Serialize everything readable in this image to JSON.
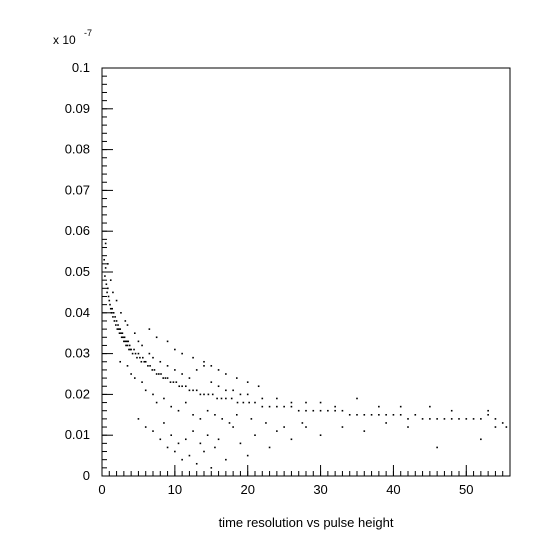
{
  "chart_data": {
    "type": "scatter",
    "title": "",
    "xlabel": "time resolution vs pulse height",
    "ylabel": "",
    "y_multiplier_base": "x 10",
    "y_multiplier_exponent": "-7",
    "xlim": [
      0,
      56
    ],
    "ylim": [
      0,
      0.1
    ],
    "x_major_ticks": [
      0,
      10,
      20,
      30,
      40,
      50
    ],
    "x_tick_labels": [
      "0",
      "10",
      "20",
      "30",
      "40",
      "50"
    ],
    "x_minor_step": 1,
    "y_major_ticks": [
      0,
      0.01,
      0.02,
      0.03,
      0.04,
      0.05,
      0.06,
      0.07,
      0.08,
      0.09,
      0.1
    ],
    "y_tick_labels": [
      "0",
      "0.01",
      "0.02",
      "0.03",
      "0.04",
      "0.05",
      "0.06",
      "0.07",
      "0.08",
      "0.09",
      "0.1"
    ],
    "y_minor_step": 0.002,
    "grid": false,
    "legend": "none",
    "marker_color": "#000000",
    "series": [
      {
        "points": [
          [
            0.3,
            0.053
          ],
          [
            0.4,
            0.049
          ],
          [
            0.5,
            0.051
          ],
          [
            0.6,
            0.047
          ],
          [
            0.7,
            0.045
          ],
          [
            0.8,
            0.046
          ],
          [
            0.9,
            0.044
          ],
          [
            1.0,
            0.043
          ],
          [
            1.1,
            0.042
          ],
          [
            1.2,
            0.041
          ],
          [
            1.3,
            0.04
          ],
          [
            1.4,
            0.041
          ],
          [
            1.5,
            0.039
          ],
          [
            1.6,
            0.04
          ],
          [
            1.7,
            0.038
          ],
          [
            1.8,
            0.039
          ],
          [
            1.9,
            0.037
          ],
          [
            2.0,
            0.038
          ],
          [
            2.1,
            0.036
          ],
          [
            2.2,
            0.037
          ],
          [
            2.3,
            0.036
          ],
          [
            2.4,
            0.035
          ],
          [
            2.5,
            0.036
          ],
          [
            2.6,
            0.035
          ],
          [
            2.7,
            0.034
          ],
          [
            2.8,
            0.035
          ],
          [
            2.9,
            0.034
          ],
          [
            3.0,
            0.033
          ],
          [
            3.1,
            0.034
          ],
          [
            3.2,
            0.033
          ],
          [
            3.3,
            0.032
          ],
          [
            3.4,
            0.033
          ],
          [
            3.5,
            0.032
          ],
          [
            3.6,
            0.033
          ],
          [
            3.7,
            0.031
          ],
          [
            3.8,
            0.032
          ],
          [
            3.9,
            0.031
          ],
          [
            4.0,
            0.031
          ],
          [
            4.2,
            0.03
          ],
          [
            4.4,
            0.031
          ],
          [
            4.6,
            0.03
          ],
          [
            4.8,
            0.029
          ],
          [
            5.0,
            0.03
          ],
          [
            5.2,
            0.029
          ],
          [
            5.4,
            0.028
          ],
          [
            5.6,
            0.029
          ],
          [
            5.8,
            0.028
          ],
          [
            6.0,
            0.028
          ],
          [
            6.3,
            0.027
          ],
          [
            6.6,
            0.027
          ],
          [
            6.9,
            0.026
          ],
          [
            7.2,
            0.026
          ],
          [
            7.5,
            0.025
          ],
          [
            7.8,
            0.025
          ],
          [
            8.1,
            0.025
          ],
          [
            8.4,
            0.024
          ],
          [
            8.7,
            0.024
          ],
          [
            9.0,
            0.024
          ],
          [
            9.4,
            0.023
          ],
          [
            9.8,
            0.023
          ],
          [
            10.2,
            0.023
          ],
          [
            10.6,
            0.022
          ],
          [
            11.0,
            0.022
          ],
          [
            11.5,
            0.022
          ],
          [
            12.0,
            0.021
          ],
          [
            12.5,
            0.021
          ],
          [
            13.0,
            0.021
          ],
          [
            13.5,
            0.02
          ],
          [
            14.0,
            0.02
          ],
          [
            14.6,
            0.02
          ],
          [
            15.2,
            0.02
          ],
          [
            15.8,
            0.019
          ],
          [
            16.4,
            0.019
          ],
          [
            17.0,
            0.019
          ],
          [
            17.8,
            0.019
          ],
          [
            18.6,
            0.018
          ],
          [
            19.4,
            0.018
          ],
          [
            20.2,
            0.018
          ],
          [
            21.0,
            0.018
          ],
          [
            22.0,
            0.017
          ],
          [
            23.0,
            0.017
          ],
          [
            24.0,
            0.017
          ],
          [
            25.0,
            0.017
          ],
          [
            26.0,
            0.017
          ],
          [
            27.0,
            0.016
          ],
          [
            28.0,
            0.016
          ],
          [
            29.0,
            0.016
          ],
          [
            30.0,
            0.016
          ],
          [
            31.0,
            0.016
          ],
          [
            32.0,
            0.016
          ],
          [
            33.0,
            0.016
          ],
          [
            34.0,
            0.015
          ],
          [
            35.0,
            0.015
          ],
          [
            36.0,
            0.015
          ],
          [
            37.0,
            0.015
          ],
          [
            38.0,
            0.015
          ],
          [
            39.0,
            0.015
          ],
          [
            40.0,
            0.015
          ],
          [
            41.0,
            0.015
          ],
          [
            42.0,
            0.014
          ],
          [
            43.0,
            0.015
          ],
          [
            44.0,
            0.014
          ],
          [
            45.0,
            0.014
          ],
          [
            46.0,
            0.014
          ],
          [
            47.0,
            0.014
          ],
          [
            48.0,
            0.014
          ],
          [
            49.0,
            0.014
          ],
          [
            50.0,
            0.014
          ],
          [
            51.0,
            0.014
          ],
          [
            52.0,
            0.014
          ],
          [
            53.0,
            0.015
          ],
          [
            54.0,
            0.014
          ],
          [
            55.0,
            0.013
          ],
          [
            55.5,
            0.012
          ],
          [
            0.5,
            0.057
          ],
          [
            0.8,
            0.052
          ],
          [
            1.2,
            0.048
          ],
          [
            1.5,
            0.045
          ],
          [
            2.0,
            0.043
          ],
          [
            2.6,
            0.04
          ],
          [
            3.2,
            0.038
          ],
          [
            3.5,
            0.037
          ],
          [
            4.5,
            0.035
          ],
          [
            5.0,
            0.033
          ],
          [
            5.5,
            0.032
          ],
          [
            6.5,
            0.03
          ],
          [
            7.0,
            0.029
          ],
          [
            8.0,
            0.028
          ],
          [
            9.0,
            0.027
          ],
          [
            10.0,
            0.026
          ],
          [
            11.0,
            0.025
          ],
          [
            12.0,
            0.024
          ],
          [
            13.0,
            0.026
          ],
          [
            14.0,
            0.027
          ],
          [
            15.0,
            0.023
          ],
          [
            16.0,
            0.022
          ],
          [
            17.0,
            0.021
          ],
          [
            18.0,
            0.021
          ],
          [
            19.0,
            0.02
          ],
          [
            20.0,
            0.02
          ],
          [
            22.0,
            0.019
          ],
          [
            24.0,
            0.019
          ],
          [
            26.0,
            0.018
          ],
          [
            28.0,
            0.018
          ],
          [
            30.0,
            0.018
          ],
          [
            32.0,
            0.017
          ],
          [
            35.0,
            0.019
          ],
          [
            38.0,
            0.017
          ],
          [
            41.0,
            0.017
          ],
          [
            45.0,
            0.017
          ],
          [
            48.0,
            0.016
          ],
          [
            53.0,
            0.016
          ],
          [
            2.5,
            0.028
          ],
          [
            3.5,
            0.027
          ],
          [
            4.0,
            0.025
          ],
          [
            4.5,
            0.024
          ],
          [
            5.5,
            0.023
          ],
          [
            6.0,
            0.021
          ],
          [
            7.0,
            0.02
          ],
          [
            7.5,
            0.018
          ],
          [
            8.5,
            0.019
          ],
          [
            9.5,
            0.017
          ],
          [
            10.5,
            0.016
          ],
          [
            11.5,
            0.018
          ],
          [
            12.5,
            0.015
          ],
          [
            13.5,
            0.014
          ],
          [
            14.5,
            0.016
          ],
          [
            15.5,
            0.015
          ],
          [
            16.5,
            0.014
          ],
          [
            17.5,
            0.013
          ],
          [
            18.5,
            0.015
          ],
          [
            20.5,
            0.014
          ],
          [
            22.5,
            0.013
          ],
          [
            25.0,
            0.012
          ],
          [
            27.5,
            0.013
          ],
          [
            5.0,
            0.014
          ],
          [
            6.0,
            0.012
          ],
          [
            7.0,
            0.011
          ],
          [
            8.0,
            0.009
          ],
          [
            8.5,
            0.013
          ],
          [
            9.0,
            0.007
          ],
          [
            9.5,
            0.01
          ],
          [
            10.0,
            0.006
          ],
          [
            10.5,
            0.008
          ],
          [
            11.0,
            0.004
          ],
          [
            11.5,
            0.009
          ],
          [
            12.0,
            0.005
          ],
          [
            12.5,
            0.011
          ],
          [
            13.0,
            0.003
          ],
          [
            13.5,
            0.008
          ],
          [
            14.0,
            0.006
          ],
          [
            14.5,
            0.01
          ],
          [
            15.0,
            0.002
          ],
          [
            15.5,
            0.007
          ],
          [
            16.0,
            0.009
          ],
          [
            17.0,
            0.004
          ],
          [
            18.0,
            0.012
          ],
          [
            19.0,
            0.008
          ],
          [
            20.0,
            0.005
          ],
          [
            21.0,
            0.01
          ],
          [
            23.0,
            0.007
          ],
          [
            24.0,
            0.011
          ],
          [
            26.0,
            0.009
          ],
          [
            28.0,
            0.012
          ],
          [
            30.0,
            0.01
          ],
          [
            33.0,
            0.012
          ],
          [
            36.0,
            0.011
          ],
          [
            39.0,
            0.013
          ],
          [
            42.0,
            0.012
          ],
          [
            46.0,
            0.007
          ],
          [
            52.0,
            0.009
          ],
          [
            54.0,
            0.012
          ],
          [
            6.5,
            0.036
          ],
          [
            7.5,
            0.034
          ],
          [
            9.0,
            0.033
          ],
          [
            10.0,
            0.031
          ],
          [
            11.0,
            0.03
          ],
          [
            12.5,
            0.029
          ],
          [
            14.0,
            0.028
          ],
          [
            15.0,
            0.027
          ],
          [
            16.0,
            0.026
          ],
          [
            17.0,
            0.025
          ],
          [
            18.5,
            0.024
          ],
          [
            20.0,
            0.023
          ],
          [
            21.5,
            0.022
          ]
        ]
      }
    ]
  }
}
